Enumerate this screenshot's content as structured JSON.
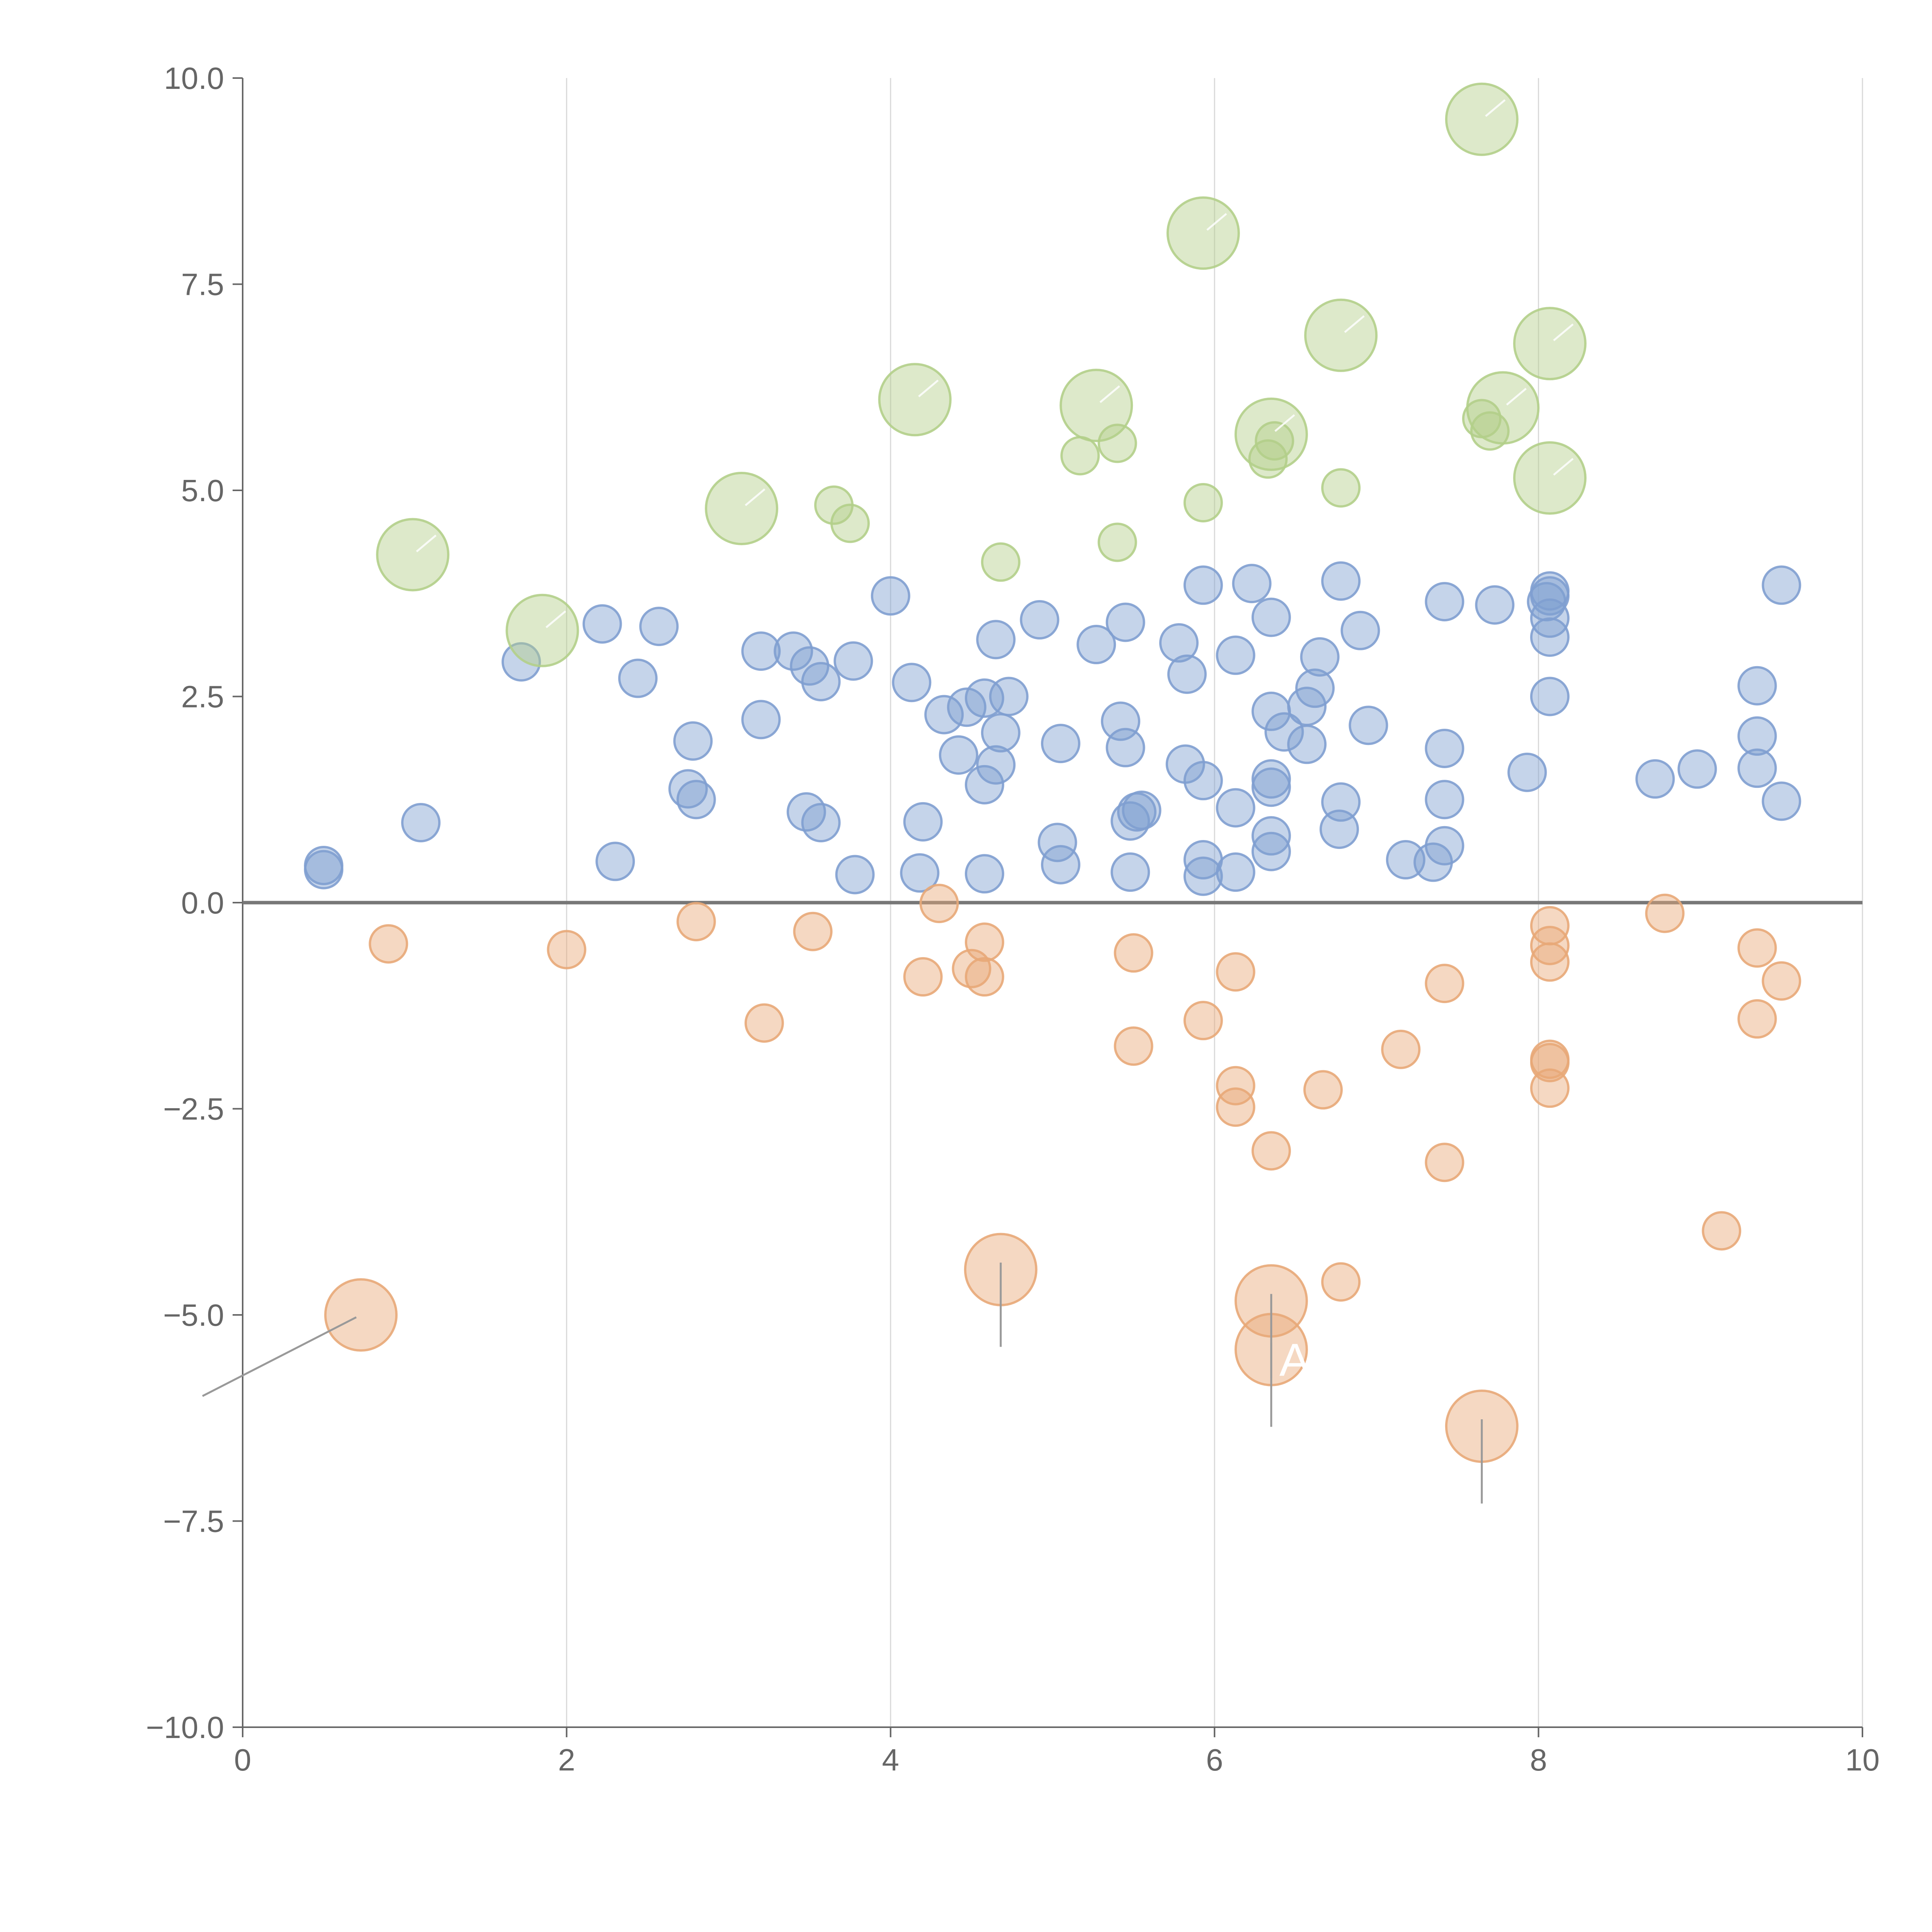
{
  "chart_data": {
    "type": "scatter",
    "title": "",
    "xlabel": "",
    "ylabel": "",
    "xlim": [
      0,
      10
    ],
    "ylim": [
      -10,
      10
    ],
    "x_ticks": [
      "0",
      "2",
      "4",
      "6",
      "8",
      "10"
    ],
    "y_ticks": [
      "10.0",
      "7.5",
      "5.0",
      "2.5",
      "0.0",
      "−2.5",
      "−5.0",
      "−7.5",
      "−10.0"
    ],
    "x_tick_values": [
      0,
      2,
      4,
      6,
      8,
      10
    ],
    "y_tick_values": [
      10,
      7.5,
      5,
      2.5,
      0,
      -2.5,
      -5,
      -7.5,
      -10
    ],
    "vertical_grid": true,
    "zero_line": true,
    "bubble_opacity": 0.45,
    "series": [
      {
        "name": "blue",
        "color": "#7f9fd0",
        "points": [
          {
            "x": 0.5,
            "y": 0.45,
            "s": 1
          },
          {
            "x": 0.5,
            "y": 0.4,
            "s": 1
          },
          {
            "x": 1.1,
            "y": 0.97,
            "s": 1
          },
          {
            "x": 1.72,
            "y": 2.92,
            "s": 1
          },
          {
            "x": 2.22,
            "y": 3.38,
            "s": 1
          },
          {
            "x": 2.3,
            "y": 0.5,
            "s": 1
          },
          {
            "x": 2.44,
            "y": 2.72,
            "s": 1
          },
          {
            "x": 2.57,
            "y": 3.35,
            "s": 1
          },
          {
            "x": 2.78,
            "y": 1.96,
            "s": 1
          },
          {
            "x": 2.75,
            "y": 1.38,
            "s": 1
          },
          {
            "x": 2.8,
            "y": 1.25,
            "s": 1
          },
          {
            "x": 3.2,
            "y": 3.05,
            "s": 1
          },
          {
            "x": 3.2,
            "y": 2.22,
            "s": 1
          },
          {
            "x": 3.4,
            "y": 3.05,
            "s": 1
          },
          {
            "x": 3.5,
            "y": 2.87,
            "s": 1
          },
          {
            "x": 3.57,
            "y": 2.68,
            "s": 1
          },
          {
            "x": 3.48,
            "y": 1.1,
            "s": 1
          },
          {
            "x": 3.57,
            "y": 0.97,
            "s": 1
          },
          {
            "x": 3.77,
            "y": 2.93,
            "s": 1
          },
          {
            "x": 3.78,
            "y": 0.34,
            "s": 1
          },
          {
            "x": 4.0,
            "y": 3.72,
            "s": 1
          },
          {
            "x": 4.13,
            "y": 2.67,
            "s": 1
          },
          {
            "x": 4.2,
            "y": 0.98,
            "s": 1
          },
          {
            "x": 4.18,
            "y": 0.36,
            "s": 1
          },
          {
            "x": 4.33,
            "y": 2.28,
            "s": 1
          },
          {
            "x": 4.42,
            "y": 1.79,
            "s": 1
          },
          {
            "x": 4.47,
            "y": 2.37,
            "s": 1
          },
          {
            "x": 4.58,
            "y": 2.48,
            "s": 1
          },
          {
            "x": 4.58,
            "y": 1.43,
            "s": 1
          },
          {
            "x": 4.58,
            "y": 0.35,
            "s": 1
          },
          {
            "x": 4.65,
            "y": 3.19,
            "s": 1
          },
          {
            "x": 4.65,
            "y": 1.67,
            "s": 1
          },
          {
            "x": 4.68,
            "y": 2.06,
            "s": 1
          },
          {
            "x": 4.73,
            "y": 2.5,
            "s": 1
          },
          {
            "x": 4.92,
            "y": 3.43,
            "s": 1
          },
          {
            "x": 5.05,
            "y": 1.93,
            "s": 1
          },
          {
            "x": 5.03,
            "y": 0.73,
            "s": 1
          },
          {
            "x": 5.05,
            "y": 0.46,
            "s": 1
          },
          {
            "x": 5.27,
            "y": 3.13,
            "s": 1
          },
          {
            "x": 5.45,
            "y": 3.4,
            "s": 1
          },
          {
            "x": 5.42,
            "y": 2.2,
            "s": 1
          },
          {
            "x": 5.45,
            "y": 1.88,
            "s": 1
          },
          {
            "x": 5.48,
            "y": 0.99,
            "s": 1
          },
          {
            "x": 5.52,
            "y": 1.1,
            "s": 1
          },
          {
            "x": 5.55,
            "y": 1.12,
            "s": 1
          },
          {
            "x": 5.48,
            "y": 0.37,
            "s": 1
          },
          {
            "x": 5.78,
            "y": 3.15,
            "s": 1
          },
          {
            "x": 5.83,
            "y": 2.77,
            "s": 1
          },
          {
            "x": 5.82,
            "y": 1.68,
            "s": 1
          },
          {
            "x": 5.93,
            "y": 3.85,
            "s": 1
          },
          {
            "x": 5.93,
            "y": 1.48,
            "s": 1
          },
          {
            "x": 5.93,
            "y": 0.52,
            "s": 1
          },
          {
            "x": 5.93,
            "y": 0.32,
            "s": 1
          },
          {
            "x": 6.13,
            "y": 3.0,
            "s": 1
          },
          {
            "x": 6.13,
            "y": 1.15,
            "s": 1
          },
          {
            "x": 6.13,
            "y": 0.37,
            "s": 1
          },
          {
            "x": 6.23,
            "y": 3.87,
            "s": 1
          },
          {
            "x": 6.35,
            "y": 3.46,
            "s": 1
          },
          {
            "x": 6.35,
            "y": 2.32,
            "s": 1
          },
          {
            "x": 6.35,
            "y": 1.5,
            "s": 1
          },
          {
            "x": 6.35,
            "y": 1.4,
            "s": 1
          },
          {
            "x": 6.35,
            "y": 0.81,
            "s": 1
          },
          {
            "x": 6.35,
            "y": 0.62,
            "s": 1
          },
          {
            "x": 6.43,
            "y": 2.07,
            "s": 1
          },
          {
            "x": 6.57,
            "y": 2.38,
            "s": 1
          },
          {
            "x": 6.57,
            "y": 1.92,
            "s": 1
          },
          {
            "x": 6.62,
            "y": 2.6,
            "s": 1
          },
          {
            "x": 6.65,
            "y": 2.98,
            "s": 1
          },
          {
            "x": 6.78,
            "y": 3.9,
            "s": 1
          },
          {
            "x": 6.78,
            "y": 1.22,
            "s": 1
          },
          {
            "x": 6.77,
            "y": 0.89,
            "s": 1
          },
          {
            "x": 6.9,
            "y": 3.3,
            "s": 1
          },
          {
            "x": 6.95,
            "y": 2.15,
            "s": 1
          },
          {
            "x": 7.18,
            "y": 0.52,
            "s": 1
          },
          {
            "x": 7.35,
            "y": 0.49,
            "s": 1
          },
          {
            "x": 7.42,
            "y": 3.65,
            "s": 1
          },
          {
            "x": 7.42,
            "y": 1.87,
            "s": 1
          },
          {
            "x": 7.42,
            "y": 1.25,
            "s": 1
          },
          {
            "x": 7.42,
            "y": 0.69,
            "s": 1
          },
          {
            "x": 7.73,
            "y": 3.61,
            "s": 1
          },
          {
            "x": 7.93,
            "y": 1.58,
            "s": 1
          },
          {
            "x": 8.05,
            "y": 3.65,
            "s": 1
          },
          {
            "x": 8.07,
            "y": 3.78,
            "s": 1
          },
          {
            "x": 8.07,
            "y": 3.72,
            "s": 1
          },
          {
            "x": 8.07,
            "y": 3.45,
            "s": 1
          },
          {
            "x": 8.07,
            "y": 3.22,
            "s": 1
          },
          {
            "x": 8.07,
            "y": 2.5,
            "s": 1
          },
          {
            "x": 8.72,
            "y": 1.5,
            "s": 1
          },
          {
            "x": 8.98,
            "y": 1.62,
            "s": 1
          },
          {
            "x": 9.35,
            "y": 2.63,
            "s": 1
          },
          {
            "x": 9.35,
            "y": 2.02,
            "s": 1
          },
          {
            "x": 9.35,
            "y": 1.63,
            "s": 1
          },
          {
            "x": 9.5,
            "y": 3.85,
            "s": 1
          },
          {
            "x": 9.5,
            "y": 1.23,
            "s": 1
          }
        ]
      },
      {
        "name": "orange",
        "color": "#e8a978",
        "points": [
          {
            "x": 0.9,
            "y": -0.5,
            "s": 1
          },
          {
            "x": 2.0,
            "y": -0.57,
            "s": 1
          },
          {
            "x": 2.8,
            "y": -0.23,
            "s": 1
          },
          {
            "x": 3.22,
            "y": -1.46,
            "s": 1
          },
          {
            "x": 3.52,
            "y": -0.35,
            "s": 1
          },
          {
            "x": 4.2,
            "y": -0.9,
            "s": 1
          },
          {
            "x": 4.3,
            "y": -0.01,
            "s": 1
          },
          {
            "x": 4.5,
            "y": -0.8,
            "s": 1
          },
          {
            "x": 4.58,
            "y": -0.48,
            "s": 1
          },
          {
            "x": 4.58,
            "y": -0.9,
            "s": 1
          },
          {
            "x": 5.5,
            "y": -0.61,
            "s": 1
          },
          {
            "x": 5.5,
            "y": -1.74,
            "s": 1
          },
          {
            "x": 5.93,
            "y": -1.43,
            "s": 1
          },
          {
            "x": 6.13,
            "y": -0.84,
            "s": 1
          },
          {
            "x": 6.13,
            "y": -2.22,
            "s": 1
          },
          {
            "x": 6.13,
            "y": -2.48,
            "s": 1
          },
          {
            "x": 6.35,
            "y": -3.01,
            "s": 1
          },
          {
            "x": 6.67,
            "y": -2.27,
            "s": 1
          },
          {
            "x": 6.78,
            "y": -4.6,
            "s": 1
          },
          {
            "x": 7.15,
            "y": -1.78,
            "s": 1
          },
          {
            "x": 7.42,
            "y": -0.98,
            "s": 1
          },
          {
            "x": 7.42,
            "y": -3.15,
            "s": 1
          },
          {
            "x": 8.07,
            "y": -0.28,
            "s": 1
          },
          {
            "x": 8.07,
            "y": -0.52,
            "s": 1
          },
          {
            "x": 8.07,
            "y": -0.72,
            "s": 1
          },
          {
            "x": 8.07,
            "y": -1.9,
            "s": 1
          },
          {
            "x": 8.07,
            "y": -1.94,
            "s": 1
          },
          {
            "x": 8.07,
            "y": -2.25,
            "s": 1
          },
          {
            "x": 8.78,
            "y": -0.13,
            "s": 1
          },
          {
            "x": 9.13,
            "y": -3.98,
            "s": 1
          },
          {
            "x": 9.35,
            "y": -0.55,
            "s": 1
          },
          {
            "x": 9.35,
            "y": -1.41,
            "s": 1
          },
          {
            "x": 9.5,
            "y": -0.95,
            "s": 1
          },
          {
            "x": 0.73,
            "y": -5.0,
            "s": 2
          },
          {
            "x": 4.68,
            "y": -4.45,
            "s": 2
          },
          {
            "x": 6.35,
            "y": -4.83,
            "s": 2
          },
          {
            "x": 6.35,
            "y": -5.42,
            "s": 2
          },
          {
            "x": 7.65,
            "y": -6.35,
            "s": 2
          }
        ]
      },
      {
        "name": "green",
        "color": "#b3cf89",
        "points": [
          {
            "x": 3.65,
            "y": 4.82,
            "s": 1
          },
          {
            "x": 3.75,
            "y": 4.6,
            "s": 1
          },
          {
            "x": 4.68,
            "y": 4.13,
            "s": 1
          },
          {
            "x": 5.17,
            "y": 5.42,
            "s": 1
          },
          {
            "x": 5.4,
            "y": 5.57,
            "s": 1
          },
          {
            "x": 5.4,
            "y": 4.37,
            "s": 1
          },
          {
            "x": 5.93,
            "y": 4.85,
            "s": 1
          },
          {
            "x": 6.33,
            "y": 5.38,
            "s": 1
          },
          {
            "x": 6.37,
            "y": 5.6,
            "s": 1
          },
          {
            "x": 6.78,
            "y": 5.03,
            "s": 1
          },
          {
            "x": 7.65,
            "y": 5.87,
            "s": 1
          },
          {
            "x": 7.7,
            "y": 5.72,
            "s": 1
          },
          {
            "x": 1.05,
            "y": 4.22,
            "s": 2
          },
          {
            "x": 1.85,
            "y": 3.3,
            "s": 2
          },
          {
            "x": 3.08,
            "y": 4.78,
            "s": 2
          },
          {
            "x": 4.15,
            "y": 6.1,
            "s": 2
          },
          {
            "x": 5.27,
            "y": 6.03,
            "s": 2
          },
          {
            "x": 5.93,
            "y": 8.12,
            "s": 2
          },
          {
            "x": 6.35,
            "y": 5.68,
            "s": 2
          },
          {
            "x": 6.78,
            "y": 6.88,
            "s": 2
          },
          {
            "x": 7.65,
            "y": 9.5,
            "s": 2
          },
          {
            "x": 7.78,
            "y": 6.0,
            "s": 2
          },
          {
            "x": 8.07,
            "y": 6.78,
            "s": 2
          },
          {
            "x": 8.07,
            "y": 5.15,
            "s": 2
          }
        ]
      }
    ],
    "annotations": [
      {
        "text": "A",
        "x": 6.4,
        "y": -5.55
      }
    ]
  }
}
